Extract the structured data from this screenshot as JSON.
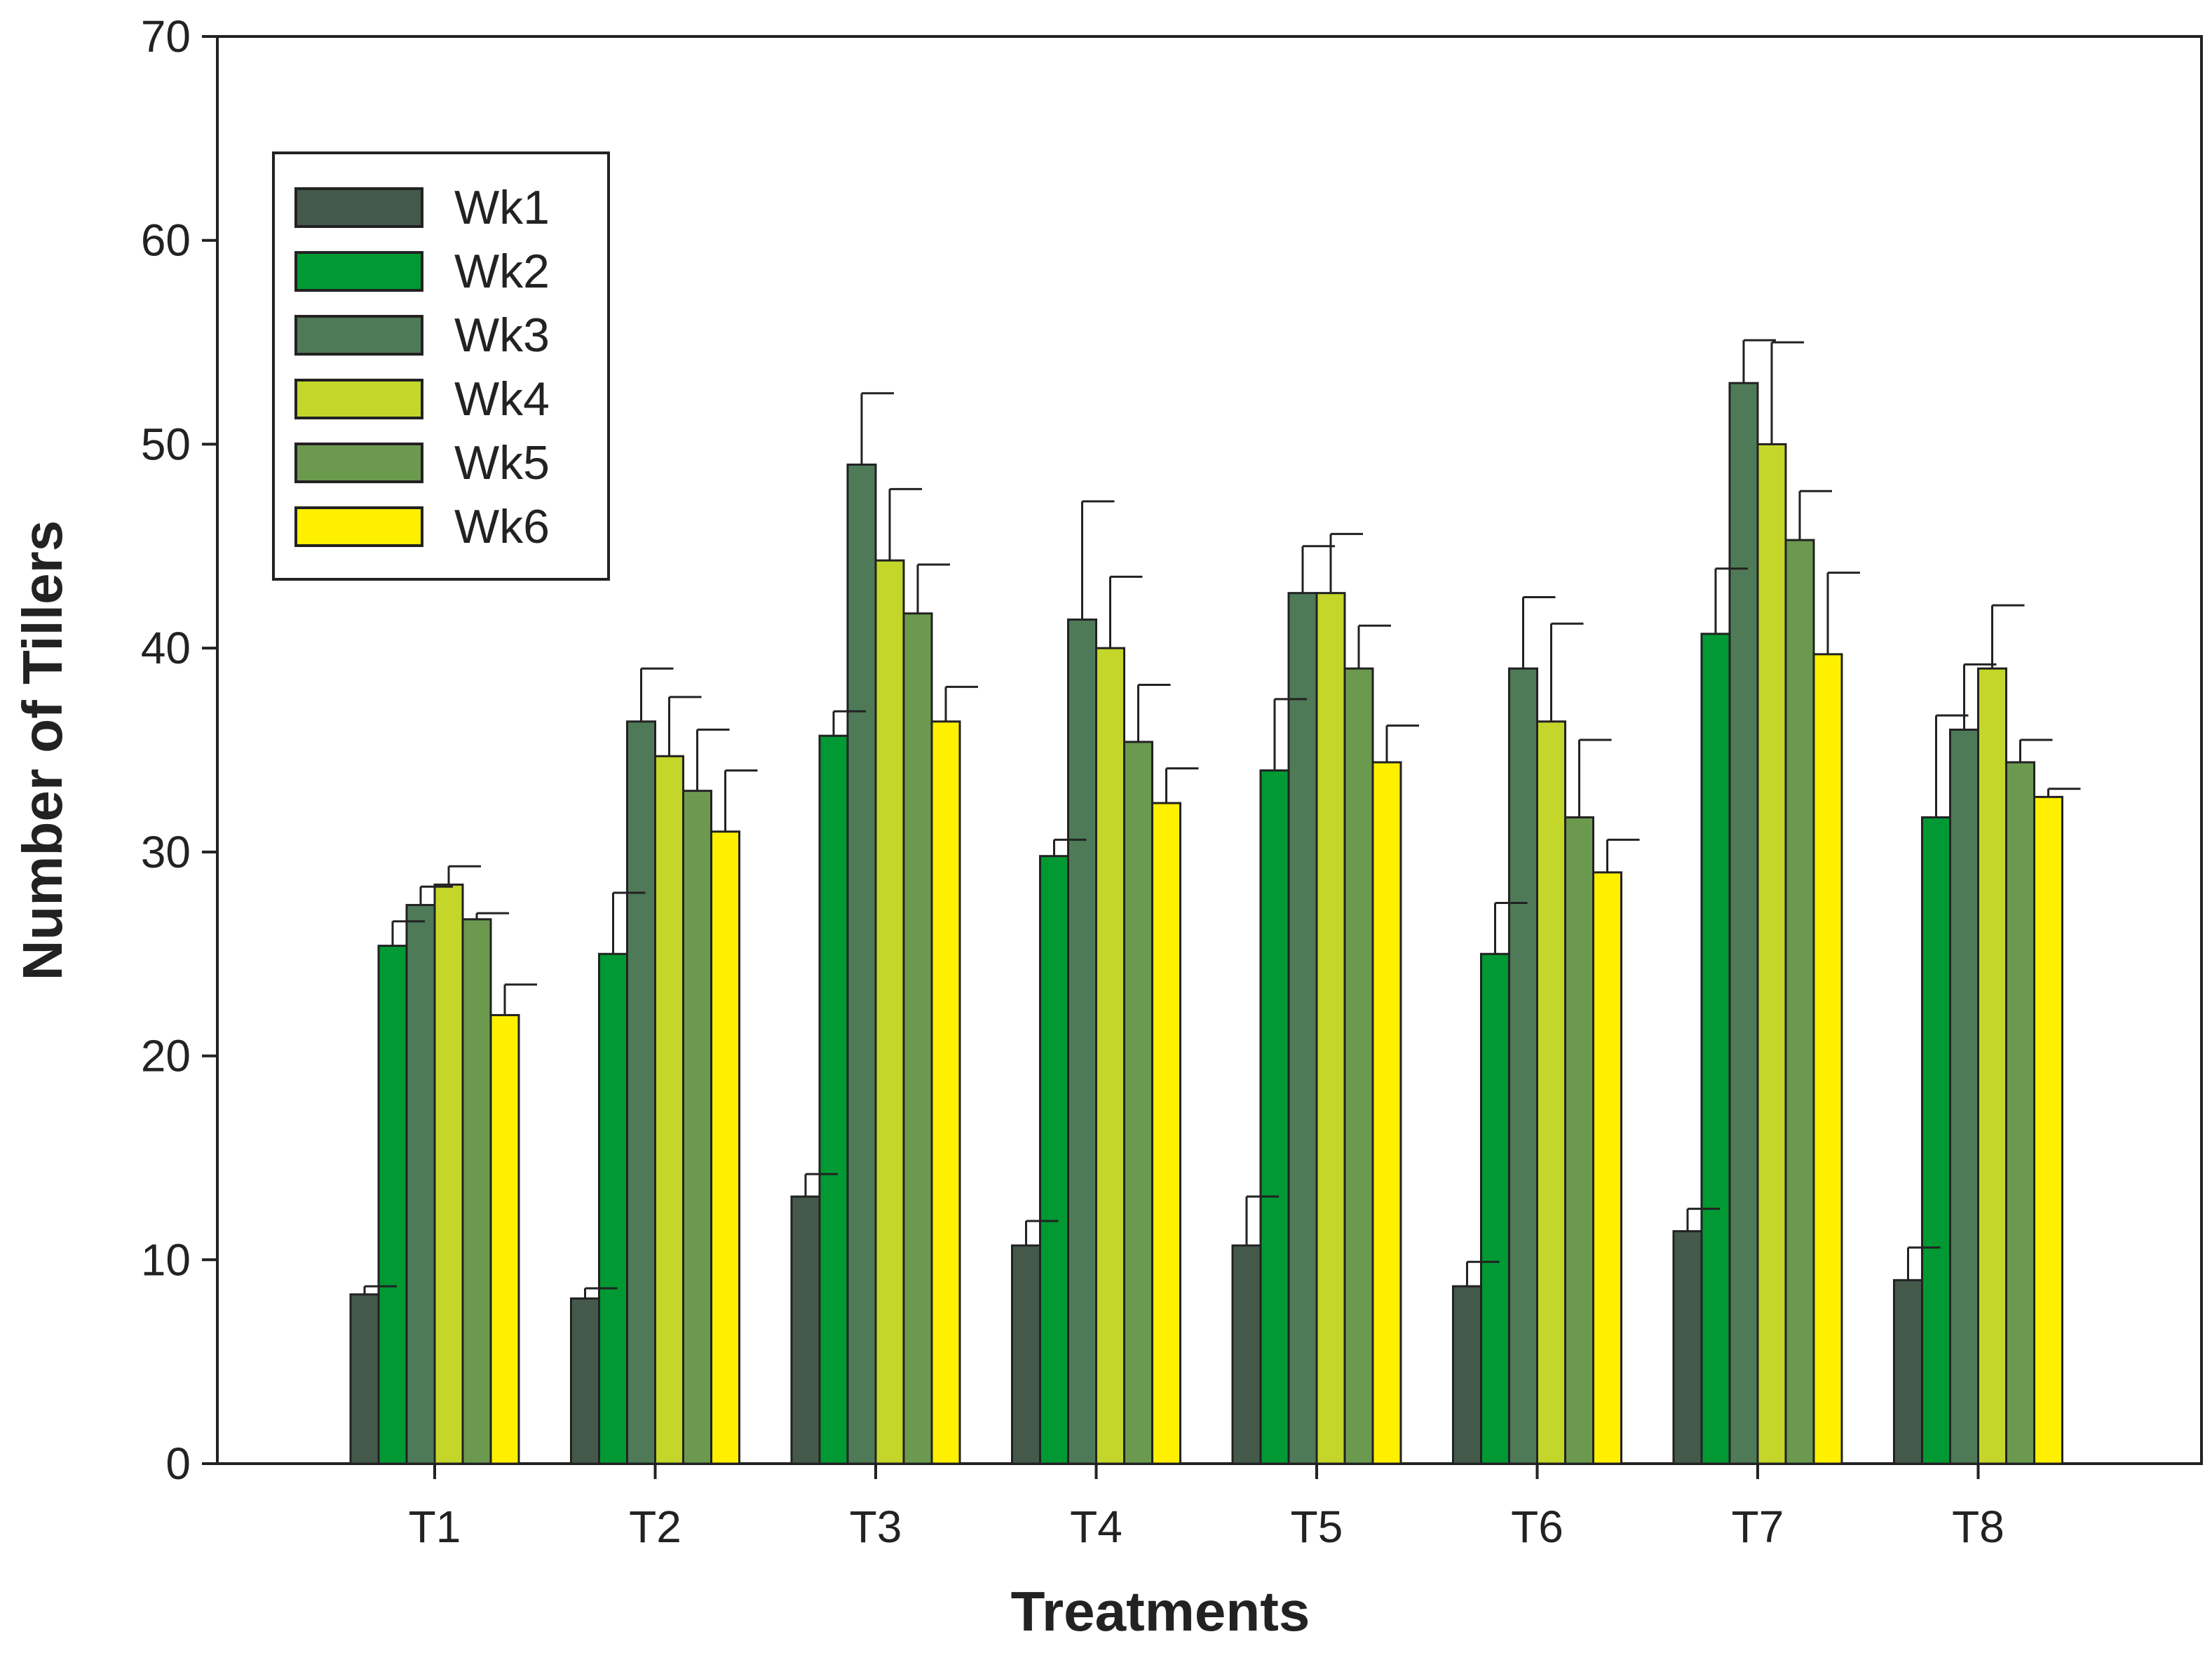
{
  "chart_data": {
    "type": "bar",
    "title": "",
    "xlabel": "Treatments",
    "ylabel": "Number of Tillers",
    "ylim": [
      0,
      70
    ],
    "yticks": [
      0,
      10,
      20,
      30,
      40,
      50,
      60,
      70
    ],
    "categories": [
      "T1",
      "T2",
      "T3",
      "T4",
      "T5",
      "T6",
      "T7",
      "T8"
    ],
    "legend_position": "top-left",
    "series": [
      {
        "name": "Wk1",
        "color": "#44594a",
        "values": [
          8.3,
          8.1,
          13.1,
          10.7,
          10.7,
          8.7,
          11.4,
          9.0
        ],
        "errors": [
          0.4,
          0.5,
          1.1,
          1.2,
          2.4,
          1.2,
          1.1,
          1.6
        ]
      },
      {
        "name": "Wk2",
        "color": "#009933",
        "values": [
          25.4,
          25.0,
          35.7,
          29.8,
          34.0,
          25.0,
          40.7,
          31.7
        ],
        "errors": [
          1.2,
          3.0,
          1.2,
          0.8,
          3.5,
          2.5,
          3.2,
          5.0
        ]
      },
      {
        "name": "Wk3",
        "color": "#4e7a58",
        "values": [
          27.4,
          36.4,
          49.0,
          41.4,
          42.7,
          39.0,
          53.0,
          36.0
        ],
        "errors": [
          0.9,
          2.6,
          3.5,
          5.8,
          2.3,
          3.5,
          2.1,
          3.2
        ]
      },
      {
        "name": "Wk4",
        "color": "#c4d62a",
        "values": [
          28.4,
          34.7,
          44.3,
          40.0,
          42.7,
          36.4,
          50.0,
          39.0
        ],
        "errors": [
          0.9,
          2.9,
          3.5,
          3.5,
          2.9,
          4.8,
          5.0,
          3.1
        ]
      },
      {
        "name": "Wk5",
        "color": "#6b9a4f",
        "values": [
          26.7,
          33.0,
          41.7,
          35.4,
          39.0,
          31.7,
          45.3,
          34.4
        ],
        "errors": [
          0.3,
          3.0,
          2.4,
          2.8,
          2.1,
          3.8,
          2.4,
          1.1
        ]
      },
      {
        "name": "Wk6",
        "color": "#fff000",
        "values": [
          22.0,
          31.0,
          36.4,
          32.4,
          34.4,
          29.0,
          39.7,
          32.7
        ],
        "errors": [
          1.5,
          3.0,
          1.7,
          1.7,
          1.8,
          1.6,
          4.0,
          0.4
        ]
      }
    ]
  }
}
